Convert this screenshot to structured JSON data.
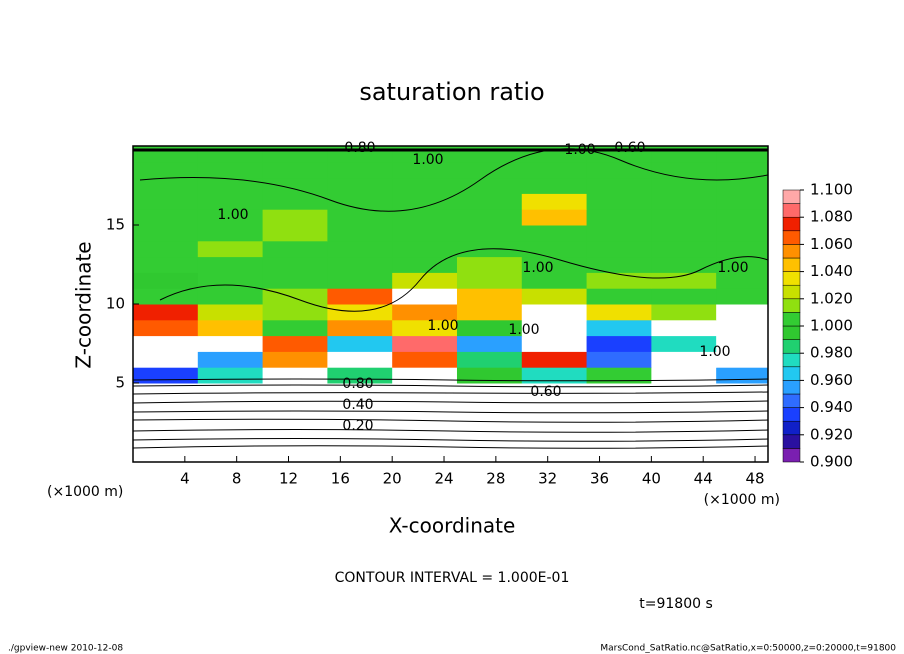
{
  "chart_data": {
    "type": "heatmap",
    "title": "saturation ratio",
    "xlabel": "X-coordinate",
    "ylabel": "Z-coordinate",
    "x_unit_left": "(×1000 m)",
    "x_unit_right": "(×1000 m)",
    "contour_interval": "CONTOUR INTERVAL = 1.000E-01",
    "time_label": "t=91800 s",
    "footer_left": "./gpview-new   2010-12-08",
    "footer_right": "MarsCond_SatRatio.nc@SatRatio,x=0:50000,z=0:20000,t=91800",
    "contour_labels": [
      "0.80",
      "1.00",
      "1.00",
      "0.60",
      "1.00",
      "1.00",
      "1.00",
      "1.00",
      "1.00",
      "1.00",
      "0.80",
      "0.60",
      "0.40",
      "0.20"
    ],
    "x": [
      2.5,
      7.5,
      12.5,
      17.5,
      22.5,
      27.5,
      32.5,
      37.5,
      42.5,
      47.5
    ],
    "z": [
      0.5,
      1.5,
      2.5,
      3.5,
      4.5,
      5.5,
      6.5,
      7.5,
      8.5,
      9.5,
      10.5,
      11.5,
      12.5,
      13.5,
      14.5,
      15.5,
      16.5,
      17.5,
      18.5,
      19.5
    ],
    "values": [
      [
        0.1,
        0.1,
        0.1,
        0.1,
        0.1,
        0.1,
        0.1,
        0.1,
        0.1,
        0.1
      ],
      [
        0.2,
        0.2,
        0.2,
        0.2,
        0.2,
        0.2,
        0.2,
        0.2,
        0.2,
        0.2
      ],
      [
        0.3,
        0.3,
        0.3,
        0.3,
        0.3,
        0.3,
        0.3,
        0.3,
        0.3,
        0.3
      ],
      [
        0.4,
        0.4,
        0.4,
        0.4,
        0.4,
        0.4,
        0.4,
        0.4,
        0.4,
        0.4
      ],
      [
        0.55,
        0.55,
        0.55,
        0.55,
        0.55,
        0.55,
        0.55,
        0.55,
        0.55,
        0.55
      ],
      [
        0.93,
        0.97,
        1.12,
        0.98,
        1.12,
        0.99,
        0.97,
        1.0,
        1.12,
        0.95
      ],
      [
        1.12,
        0.95,
        1.05,
        1.12,
        1.06,
        0.98,
        1.07,
        0.94,
        1.12,
        1.12
      ],
      [
        1.12,
        1.12,
        1.06,
        0.96,
        1.08,
        0.95,
        1.12,
        0.93,
        0.97,
        1.12
      ],
      [
        1.06,
        1.04,
        1.0,
        1.05,
        1.03,
        0.99,
        1.12,
        0.96,
        1.12,
        1.12
      ],
      [
        1.07,
        1.02,
        1.01,
        1.03,
        1.05,
        1.04,
        1.12,
        1.03,
        1.01,
        1.12
      ],
      [
        1.0,
        1.0,
        1.01,
        1.06,
        1.12,
        1.04,
        1.02,
        1.0,
        1.0,
        1.0
      ],
      [
        0.99,
        1.0,
        1.0,
        1.0,
        1.02,
        1.01,
        1.0,
        1.01,
        1.01,
        1.0
      ],
      [
        1.0,
        1.0,
        1.0,
        1.0,
        1.0,
        1.01,
        1.0,
        1.0,
        1.0,
        1.0
      ],
      [
        1.0,
        1.01,
        1.0,
        1.0,
        1.0,
        1.0,
        1.0,
        1.0,
        1.0,
        1.0
      ],
      [
        1.0,
        1.0,
        1.01,
        1.0,
        1.0,
        1.0,
        1.0,
        1.0,
        1.0,
        1.0
      ],
      [
        1.0,
        1.0,
        1.01,
        1.0,
        1.0,
        1.0,
        1.04,
        1.0,
        1.0,
        1.0
      ],
      [
        1.0,
        1.0,
        1.0,
        1.0,
        1.0,
        1.0,
        1.03,
        1.0,
        1.0,
        1.0
      ],
      [
        1.0,
        1.0,
        1.0,
        1.0,
        1.0,
        1.0,
        1.0,
        1.0,
        1.0,
        1.0
      ],
      [
        1.0,
        1.0,
        1.0,
        1.0,
        1.0,
        1.0,
        1.0,
        1.0,
        1.0,
        1.0
      ],
      [
        1.0,
        1.0,
        1.0,
        1.0,
        1.0,
        1.0,
        1.0,
        1.0,
        1.0,
        1.0
      ]
    ],
    "xlim": [
      0,
      49
    ],
    "ylim": [
      0,
      20
    ],
    "xticks": [
      4,
      8,
      12,
      16,
      20,
      24,
      28,
      32,
      36,
      40,
      44,
      48
    ],
    "yticks": [
      5,
      10,
      15
    ],
    "clim": [
      0.9,
      1.1
    ],
    "colors": [
      "#7a1fb0",
      "#2a10a0",
      "#1020c8",
      "#1a40ff",
      "#2f6cff",
      "#2aa0ff",
      "#22c8f0",
      "#20dcc0",
      "#20d070",
      "#30c830",
      "#33cc33",
      "#90e010",
      "#c8e000",
      "#f0e000",
      "#ffc000",
      "#ff9000",
      "#ff5a00",
      "#f02000",
      "#ff6a6a",
      "#ffa8a8"
    ],
    "cticks": [
      {
        "value": 0.9,
        "label": "0.900"
      },
      {
        "value": 0.92,
        "label": "0.920"
      },
      {
        "value": 0.94,
        "label": "0.940"
      },
      {
        "value": 0.96,
        "label": "0.960"
      },
      {
        "value": 0.98,
        "label": "0.980"
      },
      {
        "value": 1.0,
        "label": "1.000"
      },
      {
        "value": 1.02,
        "label": "1.020"
      },
      {
        "value": 1.04,
        "label": "1.040"
      },
      {
        "value": 1.06,
        "label": "1.060"
      },
      {
        "value": 1.08,
        "label": "1.080"
      },
      {
        "value": 1.1,
        "label": "1.100"
      }
    ]
  }
}
